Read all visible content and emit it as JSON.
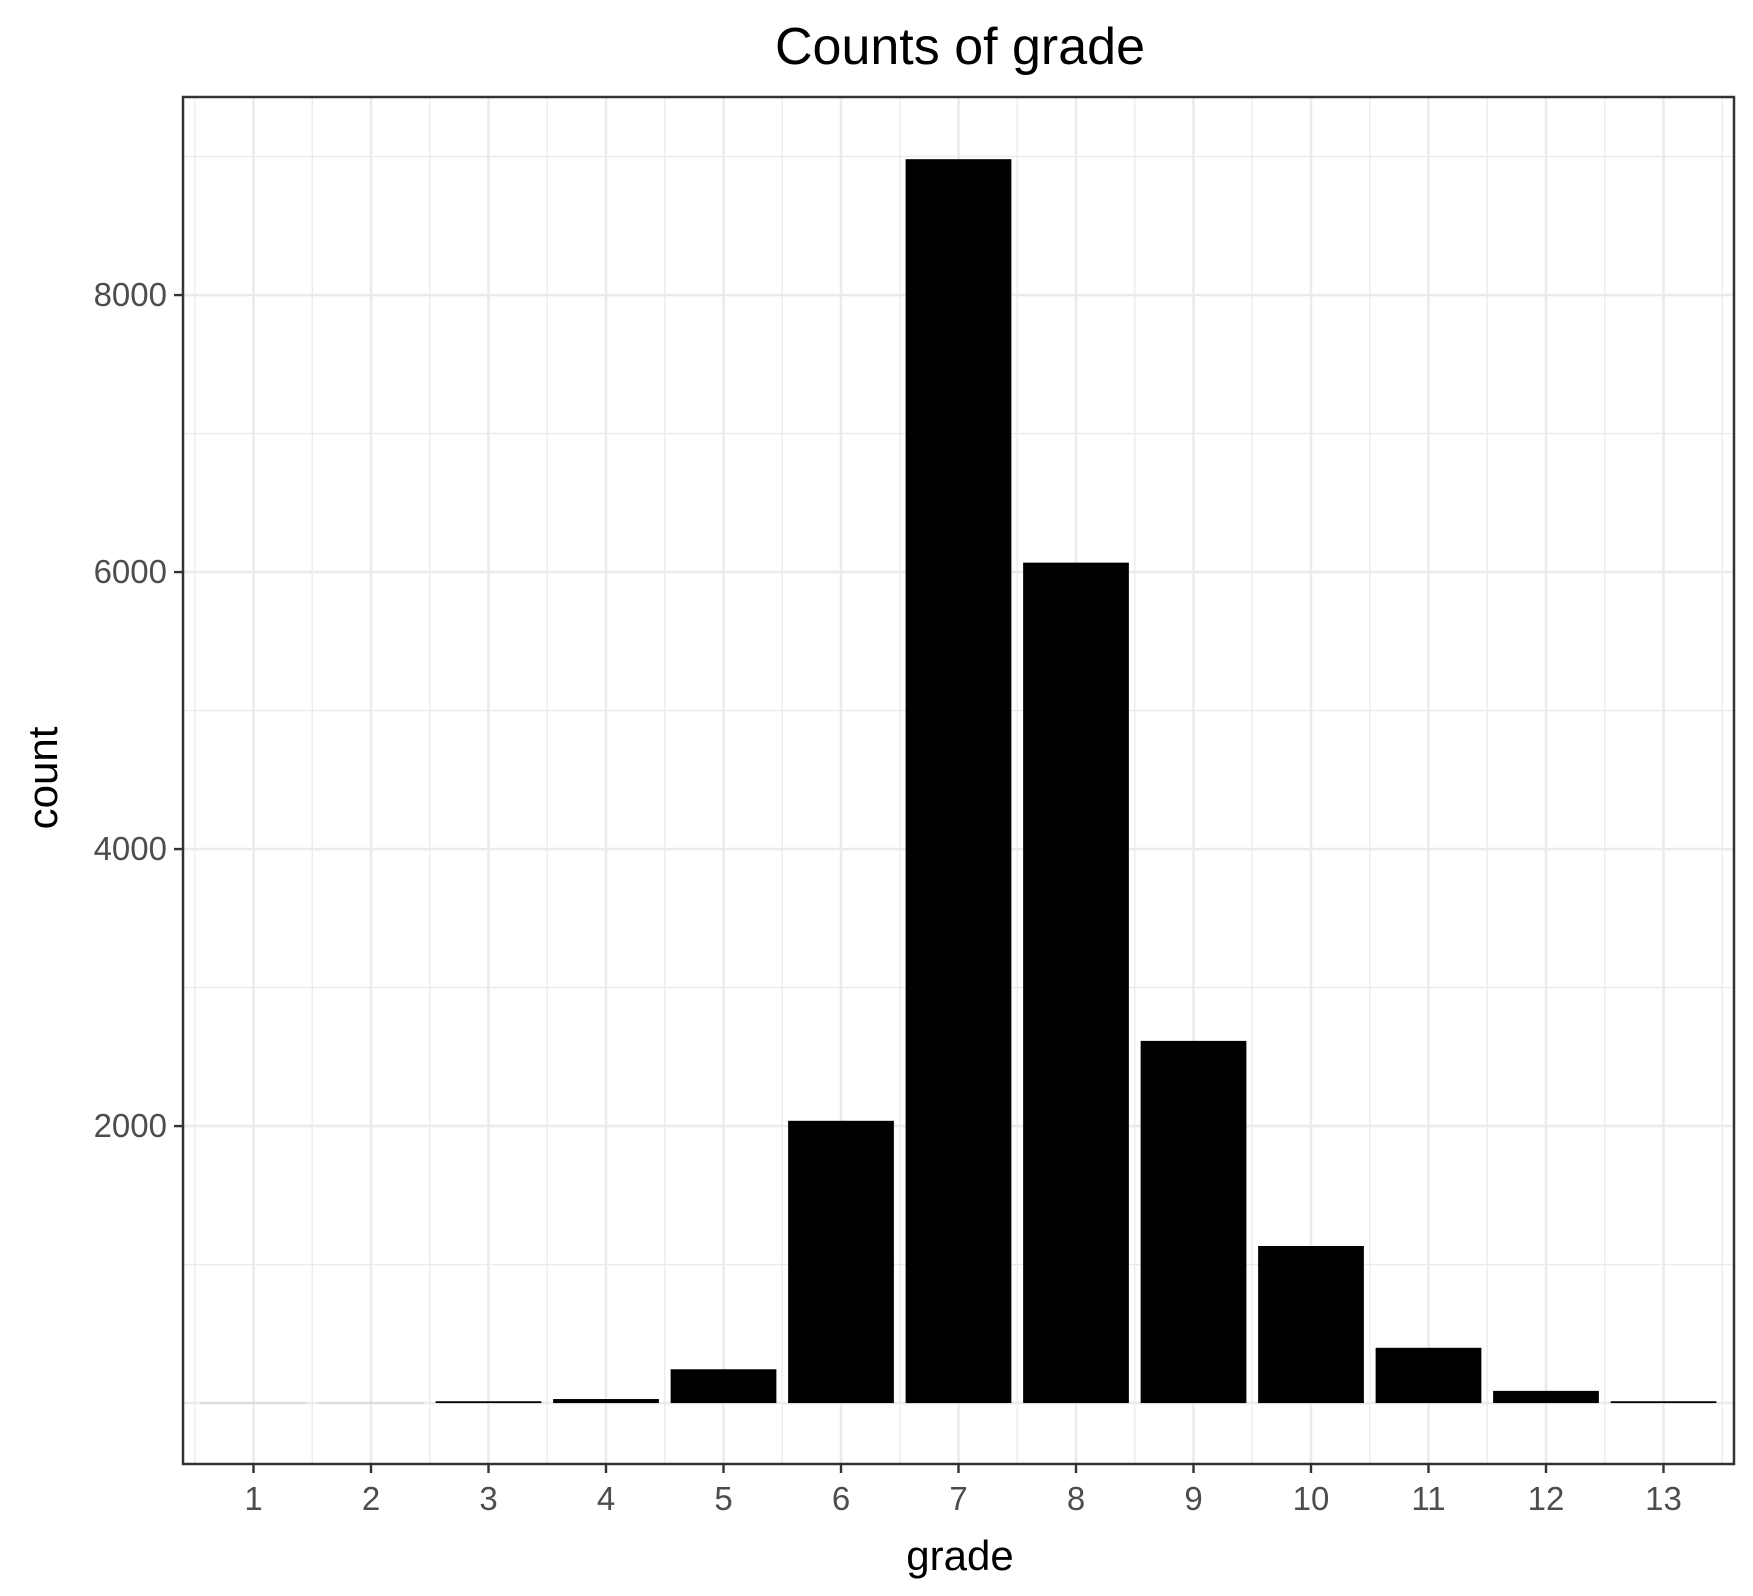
{
  "chart_data": {
    "type": "bar",
    "title": "Counts of grade",
    "xlabel": "grade",
    "ylabel": "count",
    "categories": [
      "1",
      "2",
      "3",
      "4",
      "5",
      "6",
      "7",
      "8",
      "9",
      "10",
      "11",
      "12",
      "13"
    ],
    "values": [
      1,
      1,
      13,
      29,
      244,
      2038,
      8981,
      6068,
      2615,
      1134,
      399,
      88,
      13
    ],
    "ylim": [
      -440,
      9430
    ],
    "y_ticks": [
      2000,
      4000,
      6000,
      8000
    ],
    "y_tick_labels": [
      "2000",
      "4000",
      "6000",
      "8000"
    ],
    "grid": true,
    "theme": "black-and-white",
    "bar_color": "#000000",
    "grid_color": "#ebebeb",
    "panel_border_color": "#333333"
  }
}
